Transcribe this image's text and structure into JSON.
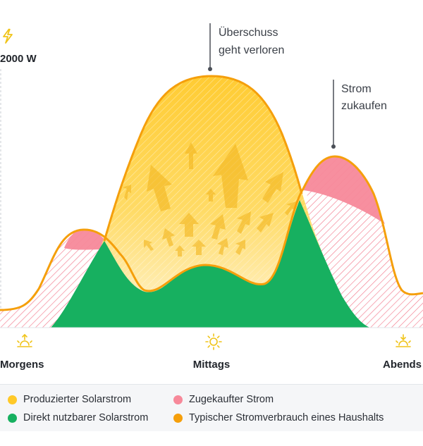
{
  "chart_data": {
    "type": "area",
    "ylabel": "2000 W",
    "x_labels": [
      {
        "text": "Morgens",
        "icon": "sunrise-icon"
      },
      {
        "text": "Mittags",
        "icon": "sun-icon"
      },
      {
        "text": "Abends",
        "icon": "sunset-icon"
      }
    ],
    "annotations": [
      {
        "lines": [
          "Überschuss",
          "geht verloren"
        ]
      },
      {
        "lines": [
          "Strom",
          "zukaufen"
        ]
      }
    ],
    "series": [
      {
        "name": "Produzierter Solarstrom",
        "color": "#ffc928"
      },
      {
        "name": "Zugekaufter Strom",
        "color": "#f7899a"
      },
      {
        "name": "Direkt nutzbarer Solarstrom",
        "color": "#17b060"
      },
      {
        "name": "Typischer Stromverbrauch eines Haushalts",
        "color": "#f59f0b"
      }
    ],
    "icons": {
      "top": "lightning-icon"
    }
  },
  "legend": [
    {
      "label": "Produzierter Solarstrom",
      "color": "#ffc928"
    },
    {
      "label": "Zugekaufter Strom",
      "color": "#f7899a"
    },
    {
      "label": "Direkt nutzbarer Solarstrom",
      "color": "#17b060"
    },
    {
      "label": "Typischer Stromverbrauch eines Haushalts",
      "color": "#f59f0b"
    }
  ]
}
